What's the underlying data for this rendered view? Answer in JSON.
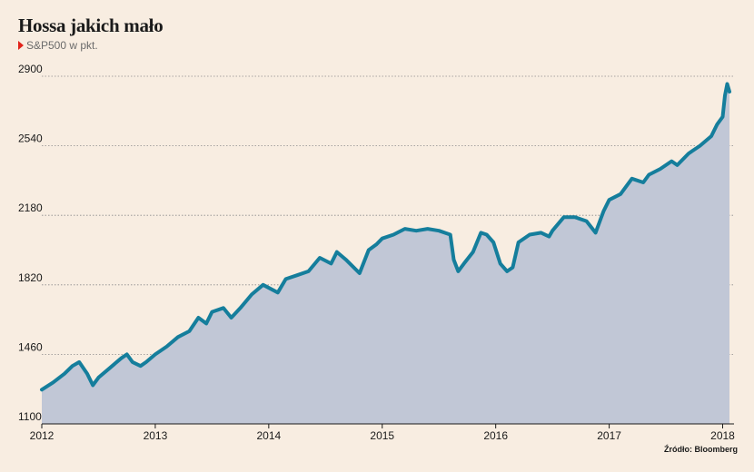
{
  "header": {
    "title": "Hossa jakich mało",
    "subtitle": "S&P500 w pkt."
  },
  "source": "Źródło: Bloomberg",
  "colors": {
    "background": "#f8ede1",
    "line": "#157e9c",
    "area": "#c1c7d6",
    "grid": "#8c8c8c",
    "accent": "#e2231a"
  },
  "chart_data": {
    "type": "area",
    "title": "Hossa jakich mało",
    "subtitle": "S&P500 w pkt.",
    "ylim": [
      1100,
      2900
    ],
    "yticks": [
      1100,
      1460,
      1820,
      2180,
      2540,
      2900
    ],
    "xlim": [
      2012.0,
      2018.1
    ],
    "xticks": [
      "2012",
      "2013",
      "2014",
      "2015",
      "2016",
      "2017",
      "2018"
    ],
    "grid": true,
    "series": [
      {
        "x": [
          2012.0,
          2012.1,
          2012.2,
          2012.27,
          2012.33,
          2012.4,
          2012.45,
          2012.5,
          2012.6,
          2012.7,
          2012.75,
          2012.8,
          2012.87,
          2012.92,
          2013.0,
          2013.1,
          2013.2,
          2013.3,
          2013.38,
          2013.45,
          2013.5,
          2013.6,
          2013.67,
          2013.75,
          2013.85,
          2013.95,
          2014.08,
          2014.15,
          2014.25,
          2014.35,
          2014.45,
          2014.55,
          2014.6,
          2014.68,
          2014.8,
          2014.88,
          2014.95,
          2015.0,
          2015.1,
          2015.2,
          2015.3,
          2015.4,
          2015.5,
          2015.6,
          2015.63,
          2015.67,
          2015.72,
          2015.8,
          2015.87,
          2015.92,
          2015.98,
          2016.04,
          2016.1,
          2016.15,
          2016.2,
          2016.3,
          2016.4,
          2016.47,
          2016.5,
          2016.6,
          2016.7,
          2016.8,
          2016.84,
          2016.88,
          2016.95,
          2017.0,
          2017.1,
          2017.2,
          2017.3,
          2017.35,
          2017.45,
          2017.55,
          2017.6,
          2017.7,
          2017.8,
          2017.9,
          2017.95,
          2018.0,
          2018.02,
          2018.04,
          2018.06
        ],
        "y": [
          1277,
          1315,
          1360,
          1400,
          1420,
          1360,
          1300,
          1340,
          1390,
          1440,
          1460,
          1420,
          1400,
          1420,
          1460,
          1500,
          1550,
          1580,
          1650,
          1620,
          1680,
          1700,
          1650,
          1700,
          1770,
          1820,
          1780,
          1850,
          1870,
          1890,
          1960,
          1930,
          1990,
          1950,
          1880,
          2000,
          2030,
          2060,
          2080,
          2110,
          2100,
          2110,
          2100,
          2080,
          1950,
          1890,
          1930,
          1990,
          2090,
          2080,
          2040,
          1930,
          1890,
          1910,
          2040,
          2080,
          2090,
          2070,
          2100,
          2170,
          2170,
          2150,
          2120,
          2090,
          2200,
          2260,
          2290,
          2370,
          2350,
          2390,
          2420,
          2460,
          2440,
          2500,
          2540,
          2590,
          2650,
          2690,
          2800,
          2860,
          2820
        ]
      }
    ]
  }
}
